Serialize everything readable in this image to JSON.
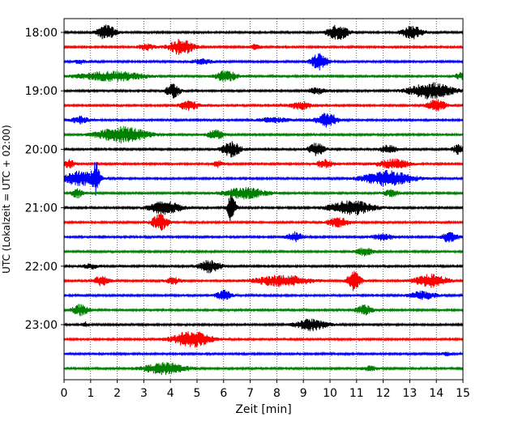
{
  "chart_data": {
    "type": "line",
    "title": "",
    "xlabel": "Zeit  [min]",
    "ylabel": "UTC (Lokalzeit = UTC + 02:00)",
    "xlim": [
      0,
      15
    ],
    "x_ticks": [
      "0",
      "1",
      "2",
      "3",
      "4",
      "5",
      "6",
      "7",
      "8",
      "9",
      "10",
      "11",
      "12",
      "13",
      "14",
      "15"
    ],
    "y_ticks": [
      "18:00",
      "19:00",
      "20:00",
      "21:00",
      "22:00",
      "23:00"
    ],
    "grid": "vertical dotted",
    "trace_interval_min": 15,
    "colors": [
      "#000000",
      "#ff0000",
      "#0000ff",
      "#008000"
    ],
    "traces": [
      {
        "start": "18:00",
        "color": "#000000",
        "events": [
          [
            1.6,
            0.9,
            0.35
          ],
          [
            10.3,
            0.9,
            0.4
          ],
          [
            13.1,
            0.8,
            0.4
          ]
        ]
      },
      {
        "start": "18:15",
        "color": "#ff0000",
        "events": [
          [
            4.4,
            1.0,
            0.45
          ],
          [
            3.1,
            0.4,
            0.3
          ],
          [
            7.2,
            0.3,
            0.2
          ]
        ]
      },
      {
        "start": "18:30",
        "color": "#0000ff",
        "events": [
          [
            9.6,
            1.0,
            0.3
          ],
          [
            5.2,
            0.3,
            0.4
          ],
          [
            0.6,
            0.3,
            0.2
          ]
        ]
      },
      {
        "start": "18:45",
        "color": "#008000",
        "events": [
          [
            1.8,
            0.6,
            1.2
          ],
          [
            6.1,
            0.7,
            0.4
          ],
          [
            14.9,
            0.4,
            0.2
          ]
        ]
      },
      {
        "start": "19:00",
        "color": "#000000",
        "events": [
          [
            4.1,
            0.9,
            0.25
          ],
          [
            13.8,
            1.0,
            0.8
          ],
          [
            9.5,
            0.4,
            0.3
          ]
        ]
      },
      {
        "start": "19:15",
        "color": "#ff0000",
        "events": [
          [
            4.7,
            0.6,
            0.35
          ],
          [
            8.9,
            0.5,
            0.4
          ],
          [
            14.0,
            0.7,
            0.35
          ]
        ]
      },
      {
        "start": "19:30",
        "color": "#0000ff",
        "events": [
          [
            0.6,
            0.5,
            0.3
          ],
          [
            9.9,
            0.9,
            0.4
          ],
          [
            7.9,
            0.3,
            0.6
          ]
        ]
      },
      {
        "start": "19:45",
        "color": "#008000",
        "events": [
          [
            2.2,
            1.0,
            0.9
          ],
          [
            5.7,
            0.6,
            0.3
          ]
        ]
      },
      {
        "start": "20:00",
        "color": "#000000",
        "events": [
          [
            6.3,
            0.9,
            0.35
          ],
          [
            9.5,
            0.8,
            0.3
          ],
          [
            12.2,
            0.5,
            0.3
          ],
          [
            14.8,
            0.6,
            0.2
          ]
        ]
      },
      {
        "start": "20:15",
        "color": "#ff0000",
        "events": [
          [
            0.2,
            0.5,
            0.2
          ],
          [
            5.8,
            0.4,
            0.2
          ],
          [
            9.8,
            0.5,
            0.3
          ],
          [
            12.4,
            0.6,
            0.6
          ]
        ]
      },
      {
        "start": "20:30",
        "color": "#0000ff",
        "events": [
          [
            0.6,
            0.9,
            0.6
          ],
          [
            1.2,
            1.8,
            0.15
          ],
          [
            12.2,
            1.0,
            0.9
          ]
        ]
      },
      {
        "start": "20:45",
        "color": "#008000",
        "events": [
          [
            0.5,
            0.6,
            0.2
          ],
          [
            6.8,
            0.7,
            0.8
          ],
          [
            12.3,
            0.4,
            0.3
          ]
        ]
      },
      {
        "start": "21:00",
        "color": "#000000",
        "events": [
          [
            3.8,
            0.8,
            0.6
          ],
          [
            6.3,
            1.8,
            0.15
          ],
          [
            10.8,
            0.9,
            0.8
          ]
        ]
      },
      {
        "start": "21:15",
        "color": "#ff0000",
        "events": [
          [
            3.6,
            1.0,
            0.3
          ],
          [
            10.3,
            0.6,
            0.4
          ]
        ]
      },
      {
        "start": "21:30",
        "color": "#0000ff",
        "events": [
          [
            8.7,
            0.6,
            0.3
          ],
          [
            12.0,
            0.4,
            0.4
          ],
          [
            14.5,
            0.7,
            0.3
          ]
        ]
      },
      {
        "start": "21:45",
        "color": "#008000",
        "events": [
          [
            11.3,
            0.5,
            0.3
          ]
        ]
      },
      {
        "start": "22:00",
        "color": "#000000",
        "events": [
          [
            5.5,
            0.8,
            0.4
          ],
          [
            1.0,
            0.3,
            0.3
          ]
        ]
      },
      {
        "start": "22:15",
        "color": "#ff0000",
        "events": [
          [
            1.4,
            0.6,
            0.3
          ],
          [
            4.1,
            0.4,
            0.3
          ],
          [
            8.2,
            0.7,
            1.0
          ],
          [
            10.9,
            1.2,
            0.25
          ],
          [
            13.8,
            0.8,
            0.6
          ]
        ]
      },
      {
        "start": "22:30",
        "color": "#0000ff",
        "events": [
          [
            6.0,
            0.6,
            0.3
          ],
          [
            13.5,
            0.5,
            0.5
          ]
        ]
      },
      {
        "start": "22:45",
        "color": "#008000",
        "events": [
          [
            0.6,
            0.7,
            0.3
          ],
          [
            11.3,
            0.6,
            0.3
          ]
        ]
      },
      {
        "start": "23:00",
        "color": "#000000",
        "events": [
          [
            9.3,
            0.7,
            0.6
          ],
          [
            0.8,
            0.3,
            0.1
          ]
        ]
      },
      {
        "start": "23:15",
        "color": "#ff0000",
        "events": [
          [
            4.8,
            1.0,
            0.7
          ]
        ]
      },
      {
        "start": "23:30",
        "color": "#0000ff",
        "events": [
          [
            14.4,
            0.2,
            0.2
          ]
        ]
      },
      {
        "start": "23:45",
        "color": "#008000",
        "events": [
          [
            3.8,
            0.7,
            0.8
          ],
          [
            11.5,
            0.3,
            0.3
          ]
        ]
      }
    ]
  }
}
